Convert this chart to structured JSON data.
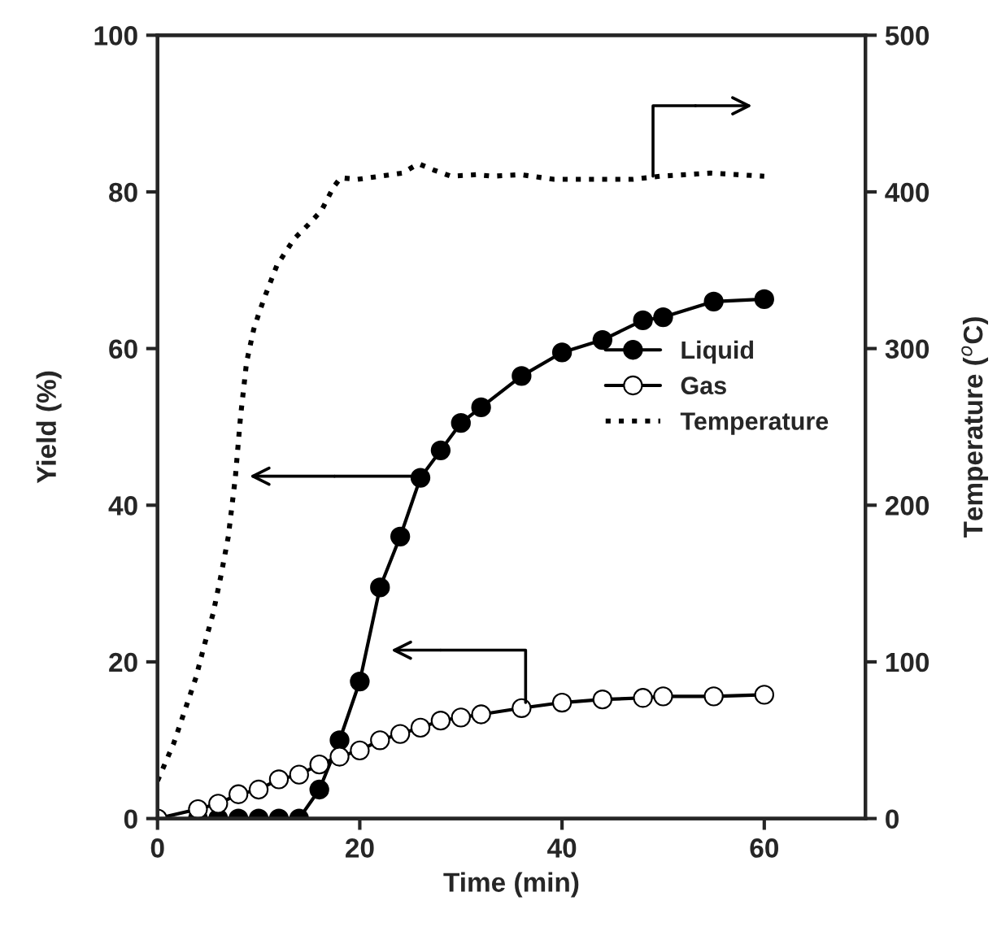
{
  "chart_data": {
    "type": "line",
    "xlabel": "Time (min)",
    "ylabel": "Yield (%)",
    "y2label": "Temperature ($^{o}$C)",
    "xlim": [
      0,
      70
    ],
    "xticks": [
      0,
      20,
      40,
      60
    ],
    "ylim": [
      0,
      100
    ],
    "yticks": [
      0,
      20,
      40,
      60,
      80,
      100
    ],
    "y2lim": [
      0,
      500
    ],
    "y2ticks": [
      0,
      100,
      200,
      300,
      400,
      500
    ],
    "grid": false,
    "legend": "right",
    "series": [
      {
        "name": "Liquid",
        "color": "#000000",
        "marker": "circle",
        "line_style": "solid",
        "x": [
          4,
          6,
          8,
          10,
          12,
          14,
          16,
          18,
          20,
          22,
          24,
          26,
          28,
          30,
          32,
          36,
          40,
          44,
          48,
          50,
          55,
          60
        ],
        "values": [
          0,
          0,
          0,
          0,
          0,
          0,
          3.7,
          10,
          17.5,
          29.5,
          36,
          43.5,
          47,
          50.5,
          52.5,
          56.5,
          59.5,
          61.1,
          63.6,
          64,
          66,
          66.3
        ]
      },
      {
        "name": "Gas",
        "color": "#000000",
        "marker": "circle",
        "line_style": "solid",
        "x": [
          0,
          4,
          6,
          8,
          10,
          12,
          14,
          16,
          18,
          20,
          22,
          24,
          26,
          28,
          30,
          32,
          36,
          40,
          44,
          48,
          50,
          55,
          60
        ],
        "values": [
          0,
          1.2,
          1.9,
          3.1,
          3.7,
          5,
          5.6,
          6.9,
          7.9,
          8.7,
          10,
          10.8,
          11.6,
          12.5,
          12.9,
          13.3,
          14.1,
          14.8,
          15.2,
          15.4,
          15.6,
          15.6,
          15.8
        ]
      },
      {
        "name": "Temperature",
        "color": "#000000",
        "marker": "none",
        "line_style": "dotted",
        "axis": "y2",
        "x": [
          0,
          1.6,
          2.7,
          3.8,
          4.6,
          5.5,
          6.3,
          7,
          7.7,
          8.2,
          8.8,
          9.5,
          10,
          10.6,
          11.8,
          12.7,
          13.5,
          14.9,
          16.2,
          17.4,
          18.1,
          19.8,
          22,
          24.2,
          25.8,
          27.3,
          29,
          31.5,
          33.1,
          35.9,
          39.2,
          42.5,
          47,
          49.7,
          54.7,
          60
        ],
        "values": [
          24,
          48,
          69,
          90,
          110,
          131,
          156,
          180,
          218,
          256,
          291,
          312,
          322,
          333,
          353,
          362,
          370,
          379,
          388,
          403,
          409,
          408,
          410,
          412,
          418,
          414,
          410,
          411,
          410,
          411,
          408,
          408,
          408,
          410,
          412,
          410
        ]
      }
    ]
  }
}
